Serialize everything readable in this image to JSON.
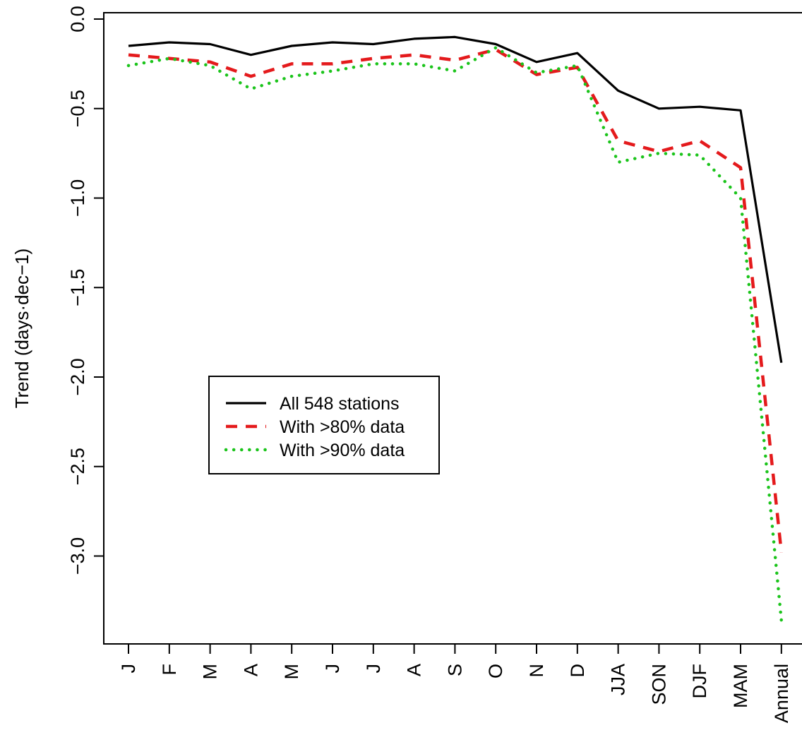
{
  "chart_data": {
    "type": "line",
    "title": "",
    "xlabel": "",
    "ylabel": "Trend (days·dec−1)",
    "categories": [
      "J",
      "F",
      "M",
      "A",
      "M",
      "J",
      "J",
      "A",
      "S",
      "O",
      "N",
      "D",
      "JJA",
      "SON",
      "DJF",
      "MAM",
      "Annual"
    ],
    "yticks": [
      "0.0",
      "−0.5",
      "−1.0",
      "−1.5",
      "−2.0",
      "−2.5",
      "−3.0"
    ],
    "ytick_values": [
      0.0,
      -0.5,
      -1.0,
      -1.5,
      -2.0,
      -2.5,
      -3.0
    ],
    "ylim": [
      -3.5,
      0.05
    ],
    "grid": false,
    "legend_position": "center-left",
    "series": [
      {
        "name": "All 548 stations",
        "color": "#000000",
        "style": "solid",
        "values": [
          -0.15,
          -0.13,
          -0.14,
          -0.2,
          -0.15,
          -0.13,
          -0.14,
          -0.11,
          -0.1,
          -0.14,
          -0.24,
          -0.19,
          -0.4,
          -0.5,
          -0.49,
          -0.51,
          -1.92
        ]
      },
      {
        "name": "With >80% data",
        "color": "#e41a1c",
        "style": "dashed",
        "values": [
          -0.2,
          -0.22,
          -0.24,
          -0.32,
          -0.25,
          -0.25,
          -0.22,
          -0.2,
          -0.23,
          -0.17,
          -0.31,
          -0.27,
          -0.68,
          -0.74,
          -0.68,
          -0.83,
          -2.98
        ]
      },
      {
        "name": "With >90% data",
        "color": "#1bc41b",
        "style": "dotted",
        "values": [
          -0.26,
          -0.22,
          -0.26,
          -0.39,
          -0.32,
          -0.29,
          -0.25,
          -0.25,
          -0.29,
          -0.16,
          -0.3,
          -0.26,
          -0.8,
          -0.75,
          -0.76,
          -1.0,
          -3.36
        ]
      }
    ]
  }
}
